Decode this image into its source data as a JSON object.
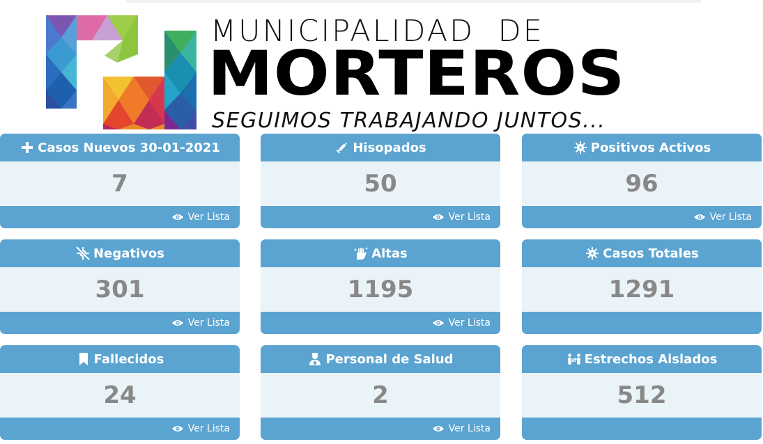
{
  "header": {
    "title_line1": "MUNICIPALIDAD  DE",
    "title_line2": "MORTEROS",
    "slogan": "SEGUIMOS TRABAJANDO JUNTOS..."
  },
  "cards": [
    {
      "title": "Casos Nuevos 30-01-2021",
      "value": "7",
      "link": "Ver Lista",
      "icon": "plus-icon"
    },
    {
      "title": "Hisopados",
      "value": "50",
      "link": "Ver Lista",
      "icon": "syringe-icon"
    },
    {
      "title": "Positivos Activos",
      "value": "96",
      "link": "Ver Lista",
      "icon": "virus-icon"
    },
    {
      "title": "Negativos",
      "value": "301",
      "link": "Ver Lista",
      "icon": "virus-slash-icon"
    },
    {
      "title": "Altas",
      "value": "1195",
      "link": "Ver Lista",
      "icon": "hand-wash-icon"
    },
    {
      "title": "Casos Totales",
      "value": "1291",
      "link": "",
      "icon": "virus-icon"
    },
    {
      "title": "Fallecidos",
      "value": "24",
      "link": "Ver Lista",
      "icon": "bookmark-icon"
    },
    {
      "title": "Personal de Salud",
      "value": "2",
      "link": "Ver Lista",
      "icon": "user-nurse-icon"
    },
    {
      "title": "Estrechos Aislados",
      "value": "512",
      "link": "",
      "icon": "people-arrows-icon"
    }
  ],
  "colors": {
    "card_accent": "#5ba4d1",
    "card_body": "#eaf3f7",
    "value_text": "#888888"
  }
}
